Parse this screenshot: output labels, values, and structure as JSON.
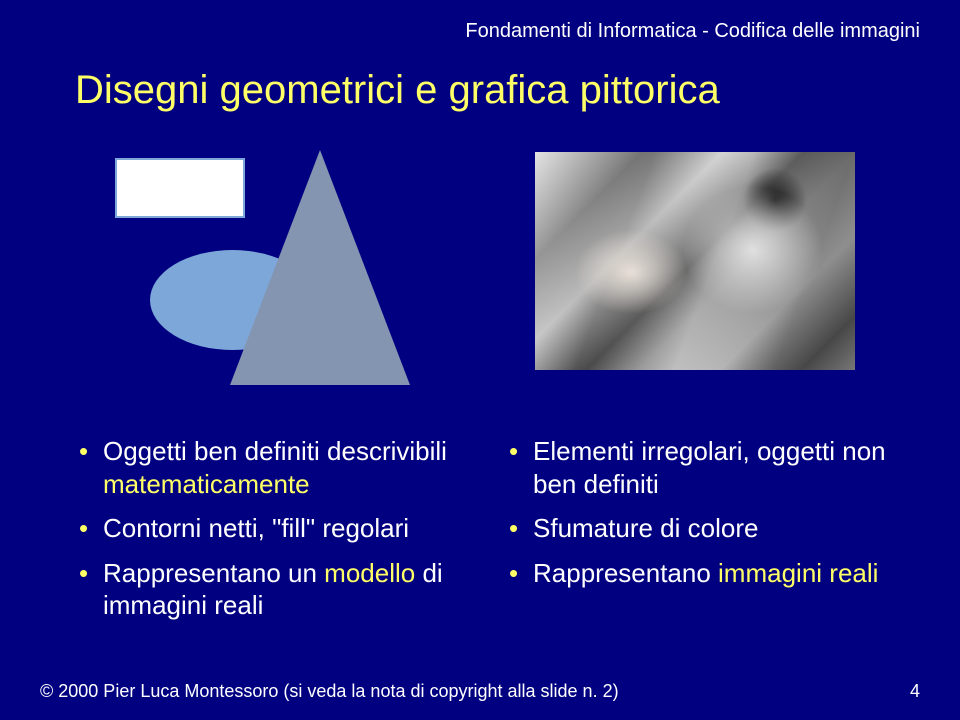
{
  "header": "Fondamenti di Informatica - Codifica delle immagini",
  "title": "Disegni geometrici e grafica pittorica",
  "colors": {
    "background": "#000080",
    "title_color": "#ffff66",
    "text_color": "#ffffff",
    "highlight_color": "#ffff66",
    "rect_fill": "#ffffff",
    "rect_border": "#7da7d8",
    "ellipse_fill": "#7da7d8",
    "triangle_fill": "#8395b0"
  },
  "left_bullets": [
    {
      "pre": "Oggetti ben definiti descrivibili ",
      "hl": "matematicamente",
      "post": ""
    },
    {
      "pre": "Contorni netti, \"fill\" regolari",
      "hl": "",
      "post": ""
    },
    {
      "pre": "Rappresentano un ",
      "hl": "modello",
      "post": " di immagini reali"
    }
  ],
  "right_bullets": [
    {
      "pre": "Elementi irregolari, oggetti non ben definiti",
      "hl": "",
      "post": ""
    },
    {
      "pre": "Sfumature di colore",
      "hl": "",
      "post": ""
    },
    {
      "pre": "Rappresentano ",
      "hl": "immagini reali",
      "post": ""
    }
  ],
  "footer": {
    "copyright": "© 2000   Pier Luca Montessoro (si veda la nota di copyright alla slide n. 2)",
    "page": "4"
  },
  "fonts": {
    "header_size": 20,
    "title_size": 40,
    "bullet_size": 26,
    "footer_size": 18
  }
}
